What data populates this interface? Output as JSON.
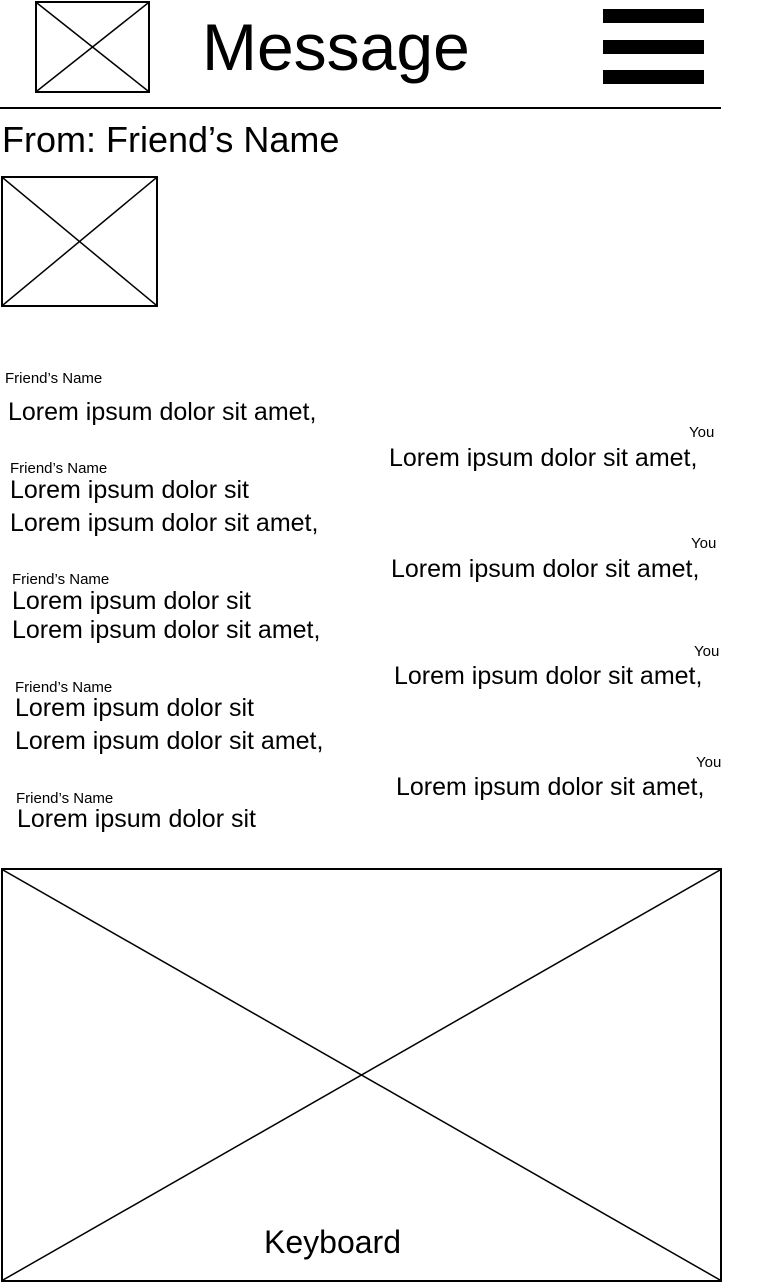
{
  "header": {
    "avatar_icon": "image-placeholder-icon",
    "title": "Message",
    "menu_icon": "hamburger-menu-icon"
  },
  "conversation": {
    "from_label": "From: Friend’s Name",
    "friend_photo_icon": "image-placeholder-icon"
  },
  "messages": [
    {
      "sender": "Friend’s Name",
      "lines": [
        "Lorem ipsum dolor sit amet,"
      ]
    },
    {
      "sender": "You",
      "lines": [
        "Lorem ipsum dolor sit amet,"
      ]
    },
    {
      "sender": "Friend’s Name",
      "lines": [
        "Lorem ipsum dolor sit",
        "Lorem ipsum dolor sit amet,"
      ]
    },
    {
      "sender": "You",
      "lines": [
        "Lorem ipsum dolor sit amet,"
      ]
    },
    {
      "sender": "Friend’s Name",
      "lines": [
        "Lorem ipsum dolor sit",
        "Lorem ipsum dolor sit amet,"
      ]
    },
    {
      "sender": "You",
      "lines": [
        "Lorem ipsum dolor sit amet,"
      ]
    },
    {
      "sender": "Friend’s Name",
      "lines": [
        "Lorem ipsum dolor sit",
        "Lorem ipsum dolor sit amet,"
      ]
    },
    {
      "sender": "You",
      "lines": [
        "Lorem ipsum dolor sit amet,"
      ]
    },
    {
      "sender": "Friend’s Name",
      "lines": [
        "Lorem ipsum dolor sit"
      ]
    }
  ],
  "keyboard": {
    "label": "Keyboard",
    "icon": "image-placeholder-icon"
  }
}
